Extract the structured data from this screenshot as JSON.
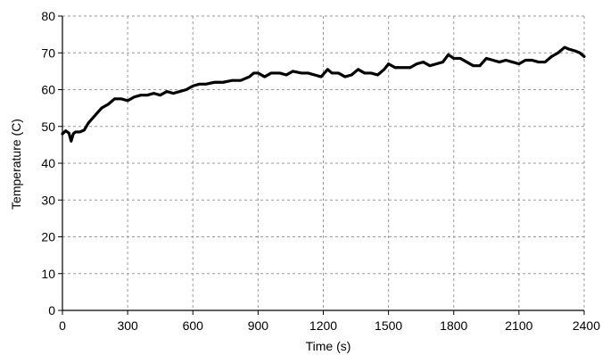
{
  "chart_data": {
    "type": "line",
    "title": "",
    "xlabel": "Time (s)",
    "ylabel": "Temperature (C)",
    "xlim": [
      0,
      2400
    ],
    "ylim": [
      0,
      80
    ],
    "x_ticks": [
      0,
      300,
      600,
      900,
      1200,
      1500,
      1800,
      2100,
      2400
    ],
    "y_ticks": [
      0,
      10,
      20,
      30,
      40,
      50,
      60,
      70,
      80
    ],
    "x_tick_labels": [
      "0",
      "300",
      "600",
      "900",
      "1200",
      "1500",
      "1800",
      "2100",
      "2400"
    ],
    "y_tick_labels": [
      "0",
      "10",
      "20",
      "30",
      "40",
      "50",
      "60",
      "70",
      "80"
    ],
    "grid": true,
    "legend": "none",
    "series": [
      {
        "color": "#000000",
        "points": [
          [
            0,
            48.0
          ],
          [
            15,
            48.8
          ],
          [
            30,
            48.2
          ],
          [
            40,
            46.0
          ],
          [
            50,
            48.0
          ],
          [
            60,
            48.5
          ],
          [
            80,
            48.5
          ],
          [
            100,
            49.0
          ],
          [
            120,
            51.0
          ],
          [
            150,
            53.0
          ],
          [
            180,
            55.0
          ],
          [
            210,
            56.0
          ],
          [
            240,
            57.5
          ],
          [
            270,
            57.5
          ],
          [
            300,
            57.0
          ],
          [
            330,
            58.0
          ],
          [
            360,
            58.5
          ],
          [
            390,
            58.5
          ],
          [
            420,
            59.0
          ],
          [
            450,
            58.5
          ],
          [
            480,
            59.5
          ],
          [
            510,
            59.0
          ],
          [
            540,
            59.5
          ],
          [
            570,
            60.0
          ],
          [
            600,
            61.0
          ],
          [
            630,
            61.5
          ],
          [
            660,
            61.5
          ],
          [
            700,
            62.0
          ],
          [
            740,
            62.0
          ],
          [
            780,
            62.5
          ],
          [
            820,
            62.5
          ],
          [
            860,
            63.5
          ],
          [
            880,
            64.5
          ],
          [
            900,
            64.5
          ],
          [
            930,
            63.5
          ],
          [
            960,
            64.5
          ],
          [
            1000,
            64.5
          ],
          [
            1030,
            64.0
          ],
          [
            1060,
            65.0
          ],
          [
            1100,
            64.5
          ],
          [
            1130,
            64.5
          ],
          [
            1160,
            64.0
          ],
          [
            1190,
            63.5
          ],
          [
            1220,
            65.5
          ],
          [
            1240,
            64.5
          ],
          [
            1270,
            64.5
          ],
          [
            1300,
            63.5
          ],
          [
            1330,
            64.0
          ],
          [
            1360,
            65.5
          ],
          [
            1390,
            64.5
          ],
          [
            1420,
            64.5
          ],
          [
            1450,
            64.0
          ],
          [
            1480,
            65.5
          ],
          [
            1500,
            67.0
          ],
          [
            1530,
            66.0
          ],
          [
            1570,
            66.0
          ],
          [
            1600,
            66.0
          ],
          [
            1630,
            67.0
          ],
          [
            1660,
            67.5
          ],
          [
            1690,
            66.5
          ],
          [
            1720,
            67.0
          ],
          [
            1750,
            67.5
          ],
          [
            1775,
            69.5
          ],
          [
            1800,
            68.5
          ],
          [
            1830,
            68.5
          ],
          [
            1860,
            67.5
          ],
          [
            1890,
            66.5
          ],
          [
            1920,
            66.5
          ],
          [
            1950,
            68.5
          ],
          [
            1980,
            68.0
          ],
          [
            2010,
            67.5
          ],
          [
            2040,
            68.0
          ],
          [
            2070,
            67.5
          ],
          [
            2100,
            67.0
          ],
          [
            2130,
            68.0
          ],
          [
            2160,
            68.0
          ],
          [
            2190,
            67.5
          ],
          [
            2220,
            67.5
          ],
          [
            2250,
            69.0
          ],
          [
            2280,
            70.0
          ],
          [
            2310,
            71.5
          ],
          [
            2330,
            71.0
          ],
          [
            2360,
            70.5
          ],
          [
            2380,
            70.0
          ],
          [
            2400,
            69.0
          ]
        ]
      }
    ]
  }
}
